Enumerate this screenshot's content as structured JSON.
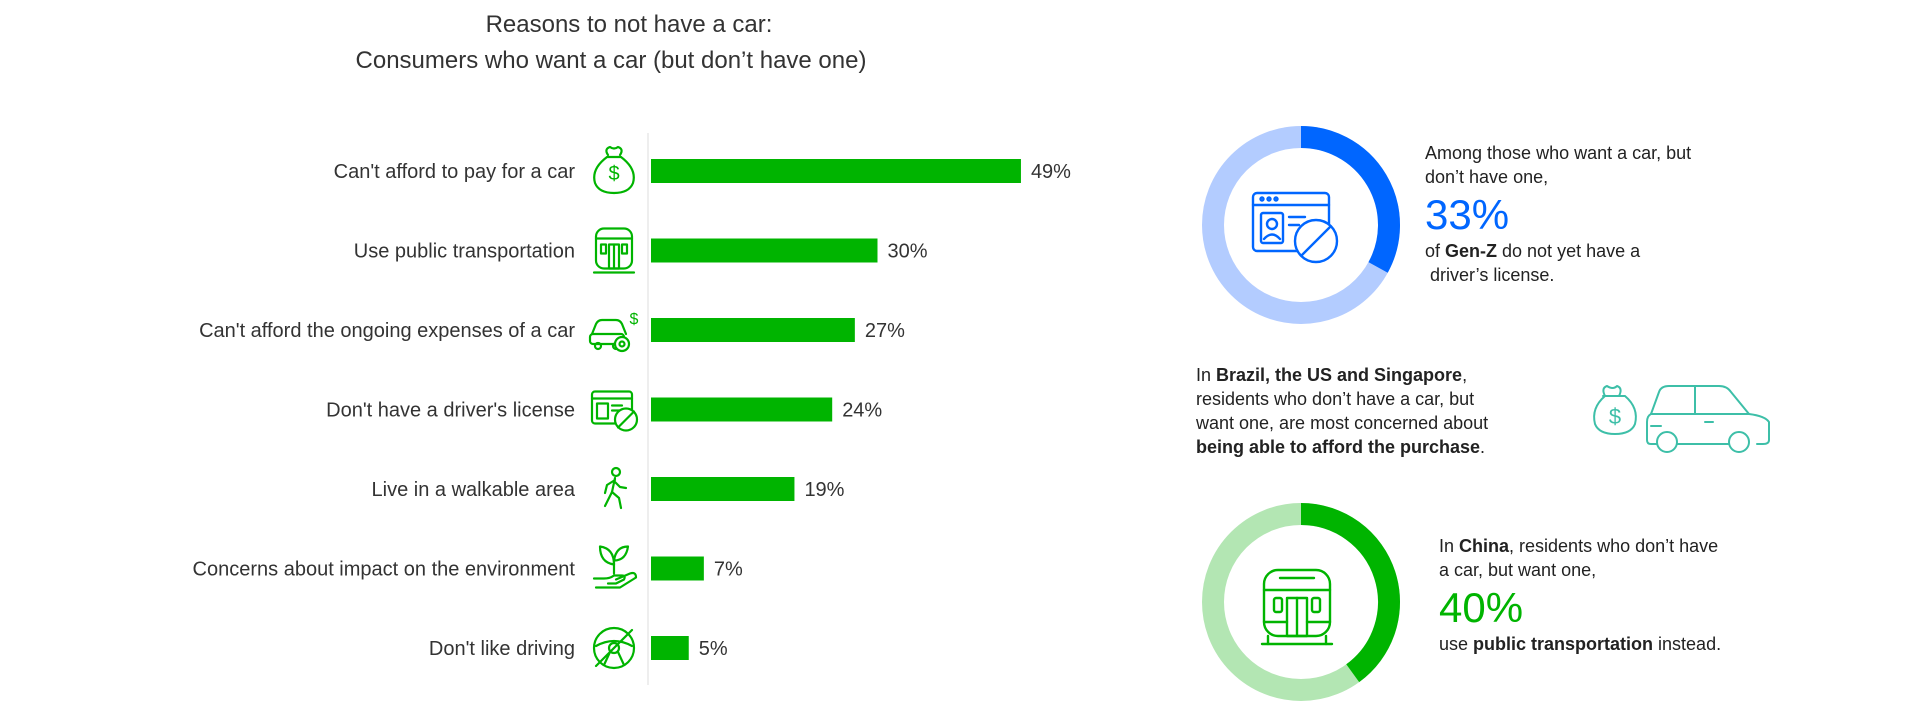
{
  "chart_data": {
    "type": "bar",
    "title_line1": "Reasons to not have a car:",
    "title_line2": "Consumers who want a car (but don’t have one)",
    "categories": [
      "Can't afford to pay for a car",
      "Use public transportation",
      "Can't afford the ongoing expenses of a car",
      "Don't have a driver's license",
      "Live in a walkable area",
      "Concerns about impact on the environment",
      "Don't like driving"
    ],
    "values": [
      49,
      30,
      27,
      24,
      19,
      7,
      5
    ],
    "value_labels": [
      "49%",
      "30%",
      "27%",
      "24%",
      "19%",
      "7%",
      "5%"
    ],
    "icons": [
      "money-bag-icon",
      "train-icon",
      "car-expenses-icon",
      "license-ban-icon",
      "walking-person-icon",
      "plant-hand-icon",
      "no-steering-wheel-icon"
    ],
    "orientation": "horizontal",
    "bar_color": "#00b400"
  },
  "callouts": {
    "genz": {
      "donut_value": 33,
      "donut_color": "#0066ff",
      "donut_track": "#b3ccff",
      "icon": "license-ban-icon",
      "line1": "Among those who want a car, but",
      "line2": "don’t have one,",
      "big": "33%",
      "pre": "of ",
      "bold": "Gen-Z",
      "post": " do not yet have a",
      "line4": " driver’s license."
    },
    "brazil": {
      "icon": "money-car-icon",
      "color": "#3dbfa8",
      "pre": "In ",
      "bold1": "Brazil, the US and Singapore",
      "post1": ",",
      "line2": "residents who don’t have a car, but",
      "line3": "want one, are most concerned about",
      "bold2": "being able to afford the purchase",
      "post2": "."
    },
    "china": {
      "donut_value": 40,
      "donut_color": "#00b400",
      "donut_track": "#b3e6b3",
      "icon": "train-icon",
      "pre": "In ",
      "bold1": "China",
      "post1": ", residents who don’t have",
      "line2": "a car, but want one,",
      "big": "40%",
      "pre3": "use ",
      "bold3": "public transportation",
      "post3": " instead."
    }
  }
}
